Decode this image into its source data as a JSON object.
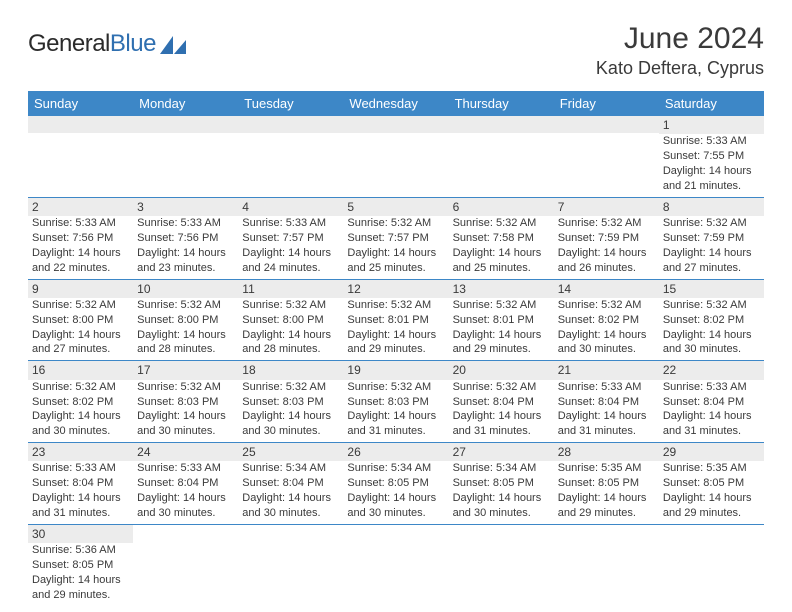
{
  "brand": {
    "part1": "General",
    "part2": "Blue",
    "color1": "#2b2b2b",
    "color2": "#2f6fb0"
  },
  "title": "June 2024",
  "subtitle": "Kato Deftera, Cyprus",
  "header_bg": "#3d87c7",
  "header_fg": "#ffffff",
  "daynum_bg": "#ececec",
  "text_color": "#3a3a3a",
  "row_border": "#3d87c7",
  "weekdays": [
    "Sunday",
    "Monday",
    "Tuesday",
    "Wednesday",
    "Thursday",
    "Friday",
    "Saturday"
  ],
  "first_weekday_index": 6,
  "days": [
    {
      "n": 1,
      "sr": "5:33 AM",
      "ss": "7:55 PM",
      "dl": "14 hours and 21 minutes."
    },
    {
      "n": 2,
      "sr": "5:33 AM",
      "ss": "7:56 PM",
      "dl": "14 hours and 22 minutes."
    },
    {
      "n": 3,
      "sr": "5:33 AM",
      "ss": "7:56 PM",
      "dl": "14 hours and 23 minutes."
    },
    {
      "n": 4,
      "sr": "5:33 AM",
      "ss": "7:57 PM",
      "dl": "14 hours and 24 minutes."
    },
    {
      "n": 5,
      "sr": "5:32 AM",
      "ss": "7:57 PM",
      "dl": "14 hours and 25 minutes."
    },
    {
      "n": 6,
      "sr": "5:32 AM",
      "ss": "7:58 PM",
      "dl": "14 hours and 25 minutes."
    },
    {
      "n": 7,
      "sr": "5:32 AM",
      "ss": "7:59 PM",
      "dl": "14 hours and 26 minutes."
    },
    {
      "n": 8,
      "sr": "5:32 AM",
      "ss": "7:59 PM",
      "dl": "14 hours and 27 minutes."
    },
    {
      "n": 9,
      "sr": "5:32 AM",
      "ss": "8:00 PM",
      "dl": "14 hours and 27 minutes."
    },
    {
      "n": 10,
      "sr": "5:32 AM",
      "ss": "8:00 PM",
      "dl": "14 hours and 28 minutes."
    },
    {
      "n": 11,
      "sr": "5:32 AM",
      "ss": "8:00 PM",
      "dl": "14 hours and 28 minutes."
    },
    {
      "n": 12,
      "sr": "5:32 AM",
      "ss": "8:01 PM",
      "dl": "14 hours and 29 minutes."
    },
    {
      "n": 13,
      "sr": "5:32 AM",
      "ss": "8:01 PM",
      "dl": "14 hours and 29 minutes."
    },
    {
      "n": 14,
      "sr": "5:32 AM",
      "ss": "8:02 PM",
      "dl": "14 hours and 30 minutes."
    },
    {
      "n": 15,
      "sr": "5:32 AM",
      "ss": "8:02 PM",
      "dl": "14 hours and 30 minutes."
    },
    {
      "n": 16,
      "sr": "5:32 AM",
      "ss": "8:02 PM",
      "dl": "14 hours and 30 minutes."
    },
    {
      "n": 17,
      "sr": "5:32 AM",
      "ss": "8:03 PM",
      "dl": "14 hours and 30 minutes."
    },
    {
      "n": 18,
      "sr": "5:32 AM",
      "ss": "8:03 PM",
      "dl": "14 hours and 30 minutes."
    },
    {
      "n": 19,
      "sr": "5:32 AM",
      "ss": "8:03 PM",
      "dl": "14 hours and 31 minutes."
    },
    {
      "n": 20,
      "sr": "5:32 AM",
      "ss": "8:04 PM",
      "dl": "14 hours and 31 minutes."
    },
    {
      "n": 21,
      "sr": "5:33 AM",
      "ss": "8:04 PM",
      "dl": "14 hours and 31 minutes."
    },
    {
      "n": 22,
      "sr": "5:33 AM",
      "ss": "8:04 PM",
      "dl": "14 hours and 31 minutes."
    },
    {
      "n": 23,
      "sr": "5:33 AM",
      "ss": "8:04 PM",
      "dl": "14 hours and 31 minutes."
    },
    {
      "n": 24,
      "sr": "5:33 AM",
      "ss": "8:04 PM",
      "dl": "14 hours and 30 minutes."
    },
    {
      "n": 25,
      "sr": "5:34 AM",
      "ss": "8:04 PM",
      "dl": "14 hours and 30 minutes."
    },
    {
      "n": 26,
      "sr": "5:34 AM",
      "ss": "8:05 PM",
      "dl": "14 hours and 30 minutes."
    },
    {
      "n": 27,
      "sr": "5:34 AM",
      "ss": "8:05 PM",
      "dl": "14 hours and 30 minutes."
    },
    {
      "n": 28,
      "sr": "5:35 AM",
      "ss": "8:05 PM",
      "dl": "14 hours and 29 minutes."
    },
    {
      "n": 29,
      "sr": "5:35 AM",
      "ss": "8:05 PM",
      "dl": "14 hours and 29 minutes."
    },
    {
      "n": 30,
      "sr": "5:36 AM",
      "ss": "8:05 PM",
      "dl": "14 hours and 29 minutes."
    }
  ],
  "labels": {
    "sunrise": "Sunrise:",
    "sunset": "Sunset:",
    "daylight": "Daylight:"
  }
}
